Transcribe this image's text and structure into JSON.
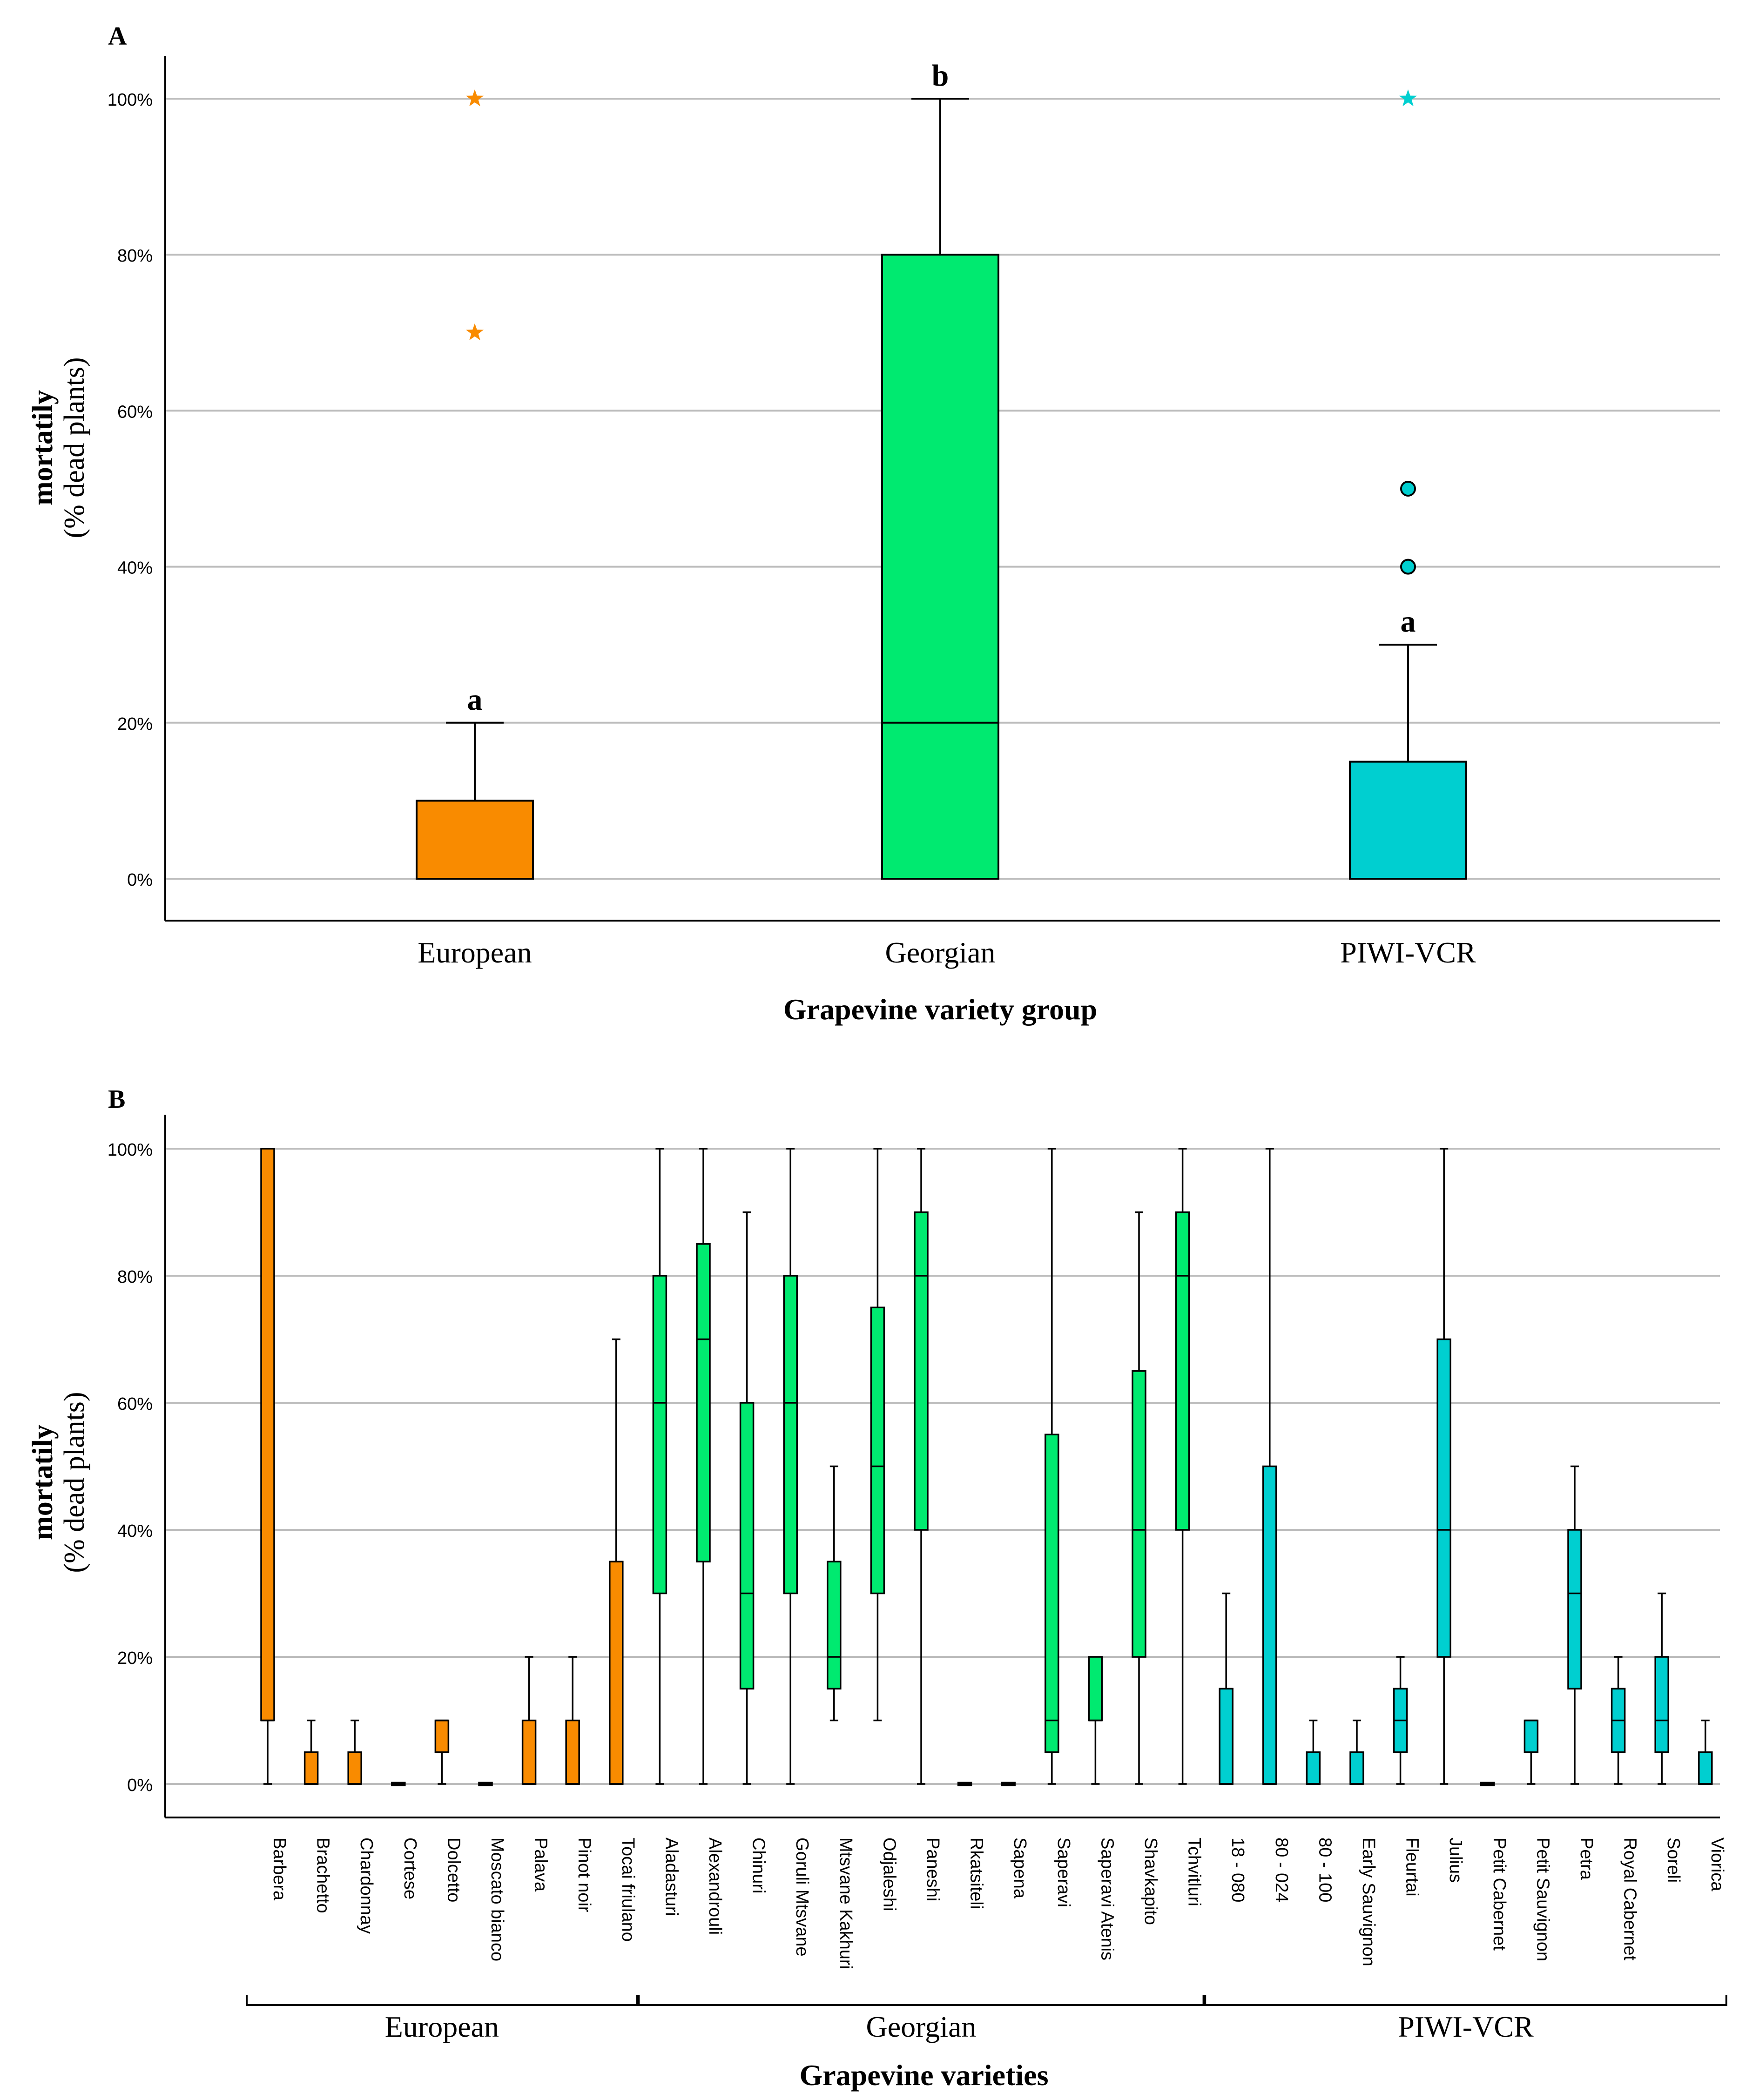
{
  "chart_data": [
    {
      "panel_label": "A",
      "type": "box",
      "title": "",
      "xlabel": "Grapevine variety group",
      "ylabel_main": "mortatily",
      "ylabel_sub": "(% dead plants)",
      "ylim": [
        0,
        100
      ],
      "yticks": [
        0,
        20,
        40,
        60,
        80,
        100
      ],
      "ytick_labels": [
        "0%",
        "20%",
        "40%",
        "60%",
        "80%",
        "100%"
      ],
      "grid": true,
      "categories": [
        "European",
        "Georgian",
        "PIWI-VCR"
      ],
      "colors": [
        "#F98B00",
        "#00EA70",
        "#00CFD0"
      ],
      "boxes": [
        {
          "group": "European",
          "q1": 0,
          "median": 0,
          "q3": 10,
          "whisker_low": 0,
          "whisker_high": 20,
          "letter": "a",
          "outliers": [
            {
              "value": 100,
              "marker": "star"
            },
            {
              "value": 70,
              "marker": "star"
            }
          ]
        },
        {
          "group": "Georgian",
          "q1": 0,
          "median": 20,
          "q3": 80,
          "whisker_low": 0,
          "whisker_high": 100,
          "letter": "b",
          "outliers": []
        },
        {
          "group": "PIWI-VCR",
          "q1": 0,
          "median": 0,
          "q3": 15,
          "whisker_low": 0,
          "whisker_high": 30,
          "letter": "a",
          "outliers": [
            {
              "value": 100,
              "marker": "star"
            },
            {
              "value": 50,
              "marker": "circle"
            },
            {
              "value": 40,
              "marker": "circle"
            }
          ]
        }
      ]
    },
    {
      "panel_label": "B",
      "type": "box",
      "title": "",
      "xlabel": "Grapevine varieties",
      "ylabel_main": "mortatily",
      "ylabel_sub": "(% dead plants)",
      "ylim": [
        0,
        100
      ],
      "yticks": [
        0,
        20,
        40,
        60,
        80,
        100
      ],
      "ytick_labels": [
        "0%",
        "20%",
        "40%",
        "60%",
        "80%",
        "100%"
      ],
      "grid": true,
      "groups": [
        {
          "name": "European",
          "color": "#F98B00"
        },
        {
          "name": "Georgian",
          "color": "#00EA70"
        },
        {
          "name": "PIWI-VCR",
          "color": "#00CFD0"
        }
      ],
      "boxes": [
        {
          "variety": "Barbera",
          "group": "European",
          "whisker_low": 0,
          "q1": 10,
          "median": 10,
          "q3": 100,
          "whisker_high": 100
        },
        {
          "variety": "Brachetto",
          "group": "European",
          "whisker_low": 0,
          "q1": 0,
          "median": 0,
          "q3": 5,
          "whisker_high": 10
        },
        {
          "variety": "Chardonnay",
          "group": "European",
          "whisker_low": 0,
          "q1": 0,
          "median": 0,
          "q3": 5,
          "whisker_high": 10
        },
        {
          "variety": "Cortese",
          "group": "European",
          "whisker_low": 0,
          "q1": 0,
          "median": 0,
          "q3": 0,
          "whisker_high": 0
        },
        {
          "variety": "Dolcetto",
          "group": "European",
          "whisker_low": 0,
          "q1": 5,
          "median": 10,
          "q3": 10,
          "whisker_high": 10
        },
        {
          "variety": "Moscato bianco",
          "group": "European",
          "whisker_low": 0,
          "q1": 0,
          "median": 0,
          "q3": 0,
          "whisker_high": 0
        },
        {
          "variety": "Palava",
          "group": "European",
          "whisker_low": 0,
          "q1": 0,
          "median": 0,
          "q3": 10,
          "whisker_high": 20
        },
        {
          "variety": "Pinot noir",
          "group": "European",
          "whisker_low": 0,
          "q1": 0,
          "median": 0,
          "q3": 10,
          "whisker_high": 20
        },
        {
          "variety": "Tocai friulano",
          "group": "European",
          "whisker_low": 0,
          "q1": 0,
          "median": 0,
          "q3": 35,
          "whisker_high": 70
        },
        {
          "variety": "Aladasturi",
          "group": "Georgian",
          "whisker_low": 0,
          "q1": 30,
          "median": 60,
          "q3": 80,
          "whisker_high": 100
        },
        {
          "variety": "Alexandrouli",
          "group": "Georgian",
          "whisker_low": 0,
          "q1": 35,
          "median": 70,
          "q3": 85,
          "whisker_high": 100
        },
        {
          "variety": "Chinuri",
          "group": "Georgian",
          "whisker_low": 0,
          "q1": 15,
          "median": 30,
          "q3": 60,
          "whisker_high": 90
        },
        {
          "variety": "Goruli Mtsvane",
          "group": "Georgian",
          "whisker_low": 0,
          "q1": 30,
          "median": 60,
          "q3": 80,
          "whisker_high": 100
        },
        {
          "variety": "Mtsvane Kakhuri",
          "group": "Georgian",
          "whisker_low": 10,
          "q1": 15,
          "median": 20,
          "q3": 35,
          "whisker_high": 50
        },
        {
          "variety": "Odjaleshi",
          "group": "Georgian",
          "whisker_low": 10,
          "q1": 30,
          "median": 50,
          "q3": 75,
          "whisker_high": 100
        },
        {
          "variety": "Paneshi",
          "group": "Georgian",
          "whisker_low": 0,
          "q1": 40,
          "median": 80,
          "q3": 90,
          "whisker_high": 100
        },
        {
          "variety": "Rkatsiteli",
          "group": "Georgian",
          "whisker_low": 0,
          "q1": 0,
          "median": 0,
          "q3": 0,
          "whisker_high": 0
        },
        {
          "variety": "Sapena",
          "group": "Georgian",
          "whisker_low": 0,
          "q1": 0,
          "median": 0,
          "q3": 0,
          "whisker_high": 0
        },
        {
          "variety": "Saperavi",
          "group": "Georgian",
          "whisker_low": 0,
          "q1": 5,
          "median": 10,
          "q3": 55,
          "whisker_high": 100
        },
        {
          "variety": "Saperavi Atenis",
          "group": "Georgian",
          "whisker_low": 0,
          "q1": 10,
          "median": 10,
          "q3": 20,
          "whisker_high": 20
        },
        {
          "variety": "Shavkapito",
          "group": "Georgian",
          "whisker_low": 0,
          "q1": 20,
          "median": 40,
          "q3": 65,
          "whisker_high": 90
        },
        {
          "variety": "Tchvitluri",
          "group": "Georgian",
          "whisker_low": 0,
          "q1": 40,
          "median": 80,
          "q3": 90,
          "whisker_high": 100
        },
        {
          "variety": "18 - 080",
          "group": "PIWI-VCR",
          "whisker_low": 0,
          "q1": 0,
          "median": 0,
          "q3": 15,
          "whisker_high": 30
        },
        {
          "variety": "80 - 024",
          "group": "PIWI-VCR",
          "whisker_low": 0,
          "q1": 0,
          "median": 0,
          "q3": 50,
          "whisker_high": 100
        },
        {
          "variety": "80 - 100",
          "group": "PIWI-VCR",
          "whisker_low": 0,
          "q1": 0,
          "median": 0,
          "q3": 5,
          "whisker_high": 10
        },
        {
          "variety": "Early Sauvignon",
          "group": "PIWI-VCR",
          "whisker_low": 0,
          "q1": 0,
          "median": 0,
          "q3": 5,
          "whisker_high": 10
        },
        {
          "variety": "Fleurtai",
          "group": "PIWI-VCR",
          "whisker_low": 0,
          "q1": 5,
          "median": 10,
          "q3": 15,
          "whisker_high": 20
        },
        {
          "variety": "Julius",
          "group": "PIWI-VCR",
          "whisker_low": 0,
          "q1": 20,
          "median": 40,
          "q3": 70,
          "whisker_high": 100
        },
        {
          "variety": "Petit Cabernet",
          "group": "PIWI-VCR",
          "whisker_low": 0,
          "q1": 0,
          "median": 0,
          "q3": 0,
          "whisker_high": 0
        },
        {
          "variety": "Petit Sauvignon",
          "group": "PIWI-VCR",
          "whisker_low": 0,
          "q1": 5,
          "median": 10,
          "q3": 10,
          "whisker_high": 10
        },
        {
          "variety": "Petra",
          "group": "PIWI-VCR",
          "whisker_low": 0,
          "q1": 15,
          "median": 30,
          "q3": 40,
          "whisker_high": 50
        },
        {
          "variety": "Royal Cabernet",
          "group": "PIWI-VCR",
          "whisker_low": 0,
          "q1": 5,
          "median": 10,
          "q3": 15,
          "whisker_high": 20
        },
        {
          "variety": "Soreli",
          "group": "PIWI-VCR",
          "whisker_low": 0,
          "q1": 5,
          "median": 10,
          "q3": 20,
          "whisker_high": 30
        },
        {
          "variety": "Viorica",
          "group": "PIWI-VCR",
          "whisker_low": 0,
          "q1": 0,
          "median": 0,
          "q3": 5,
          "whisker_high": 10
        }
      ]
    }
  ]
}
